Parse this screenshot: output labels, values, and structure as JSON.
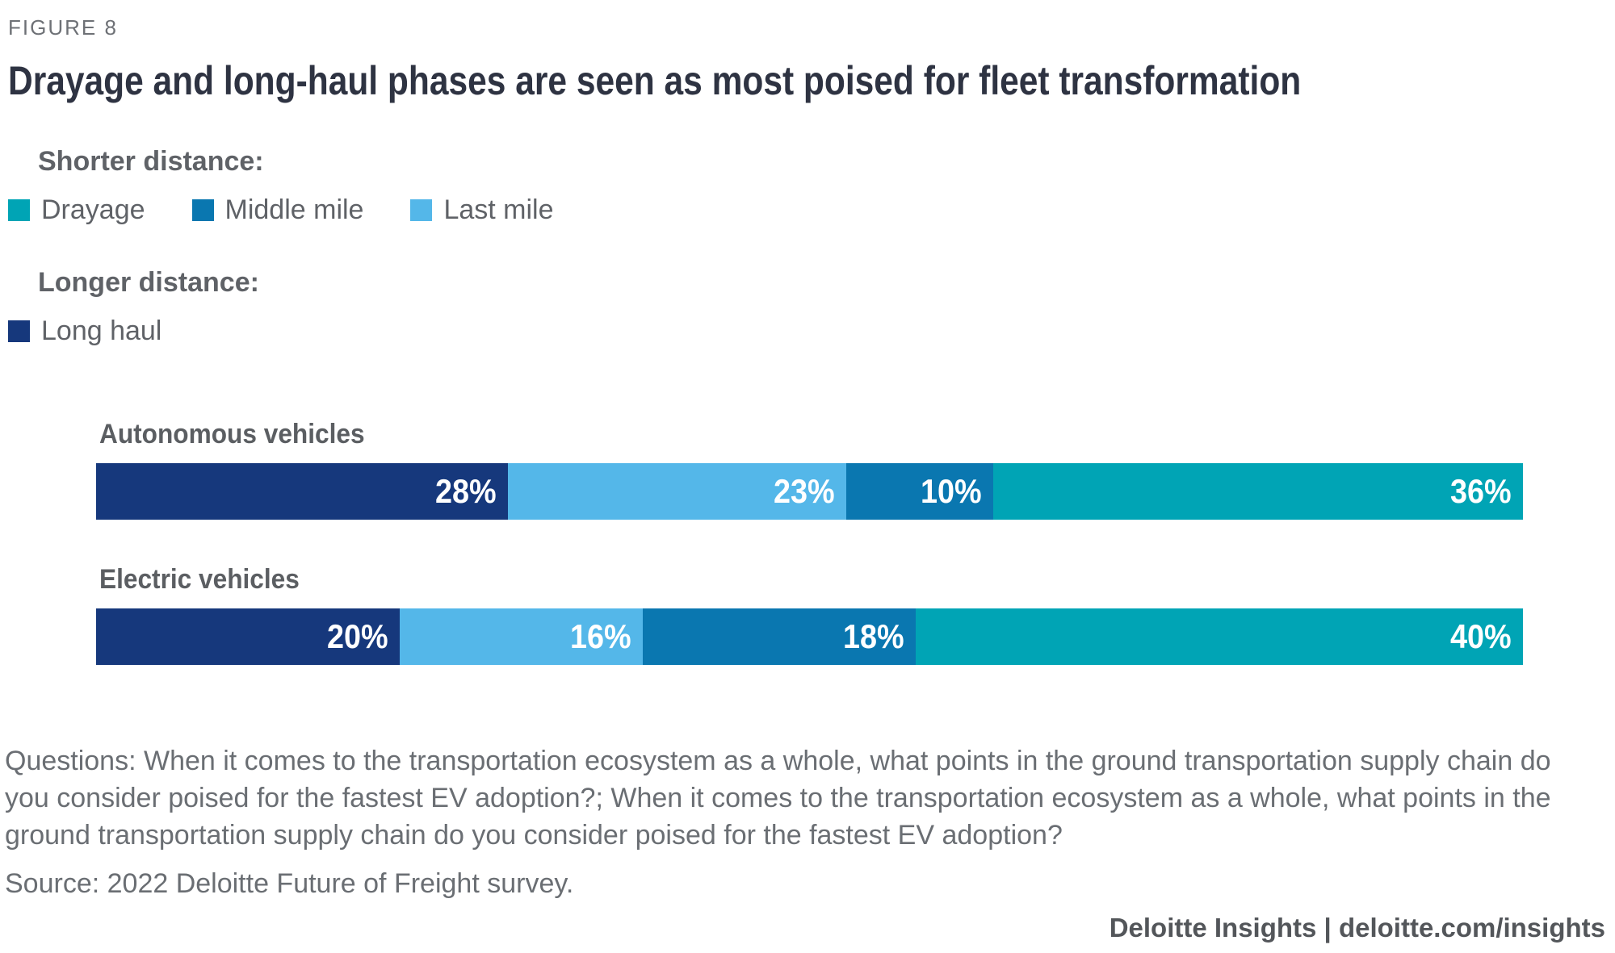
{
  "figure_label": "FIGURE 8",
  "title": "Drayage and long-haul phases are seen as most poised for fleet transformation",
  "legend": {
    "shorter_heading": "Shorter distance:",
    "longer_heading": "Longer distance:",
    "shorter_items": [
      {
        "label": "Drayage",
        "color": "#00A4B5"
      },
      {
        "label": "Middle mile",
        "color": "#0A77B0"
      },
      {
        "label": "Last mile",
        "color": "#54B7E9"
      }
    ],
    "longer_items": [
      {
        "label": "Long haul",
        "color": "#16387C"
      }
    ]
  },
  "chart_data": {
    "type": "bar",
    "orientation": "horizontal",
    "stacked": true,
    "normalized_full_width": true,
    "unit": "%",
    "grid": false,
    "legend_position": "top-left",
    "categories": [
      "Autonomous vehicles",
      "Electric vehicles"
    ],
    "series": [
      {
        "name": "Long haul",
        "color": "#16387C",
        "values": [
          28,
          20
        ]
      },
      {
        "name": "Last mile",
        "color": "#54B7E9",
        "values": [
          23,
          16
        ]
      },
      {
        "name": "Middle mile",
        "color": "#0A77B0",
        "values": [
          10,
          18
        ]
      },
      {
        "name": "Drayage",
        "color": "#00A4B5",
        "values": [
          36,
          40
        ]
      }
    ],
    "value_labels": [
      [
        "28%",
        "23%",
        "10%",
        "36%"
      ],
      [
        "20%",
        "16%",
        "18%",
        "40%"
      ]
    ]
  },
  "footer": {
    "questions": "Questions: When it comes to the transportation ecosystem as a whole, what points in the ground transportation supply chain do you consider poised for the fastest EV adoption?; When it comes to the transportation ecosystem as a whole, what points in the ground transportation supply chain do you consider poised for the fastest EV adoption?",
    "source": "Source: 2022 Deloitte Future of Freight survey.",
    "brand": "Deloitte Insights | deloitte.com/insights"
  }
}
